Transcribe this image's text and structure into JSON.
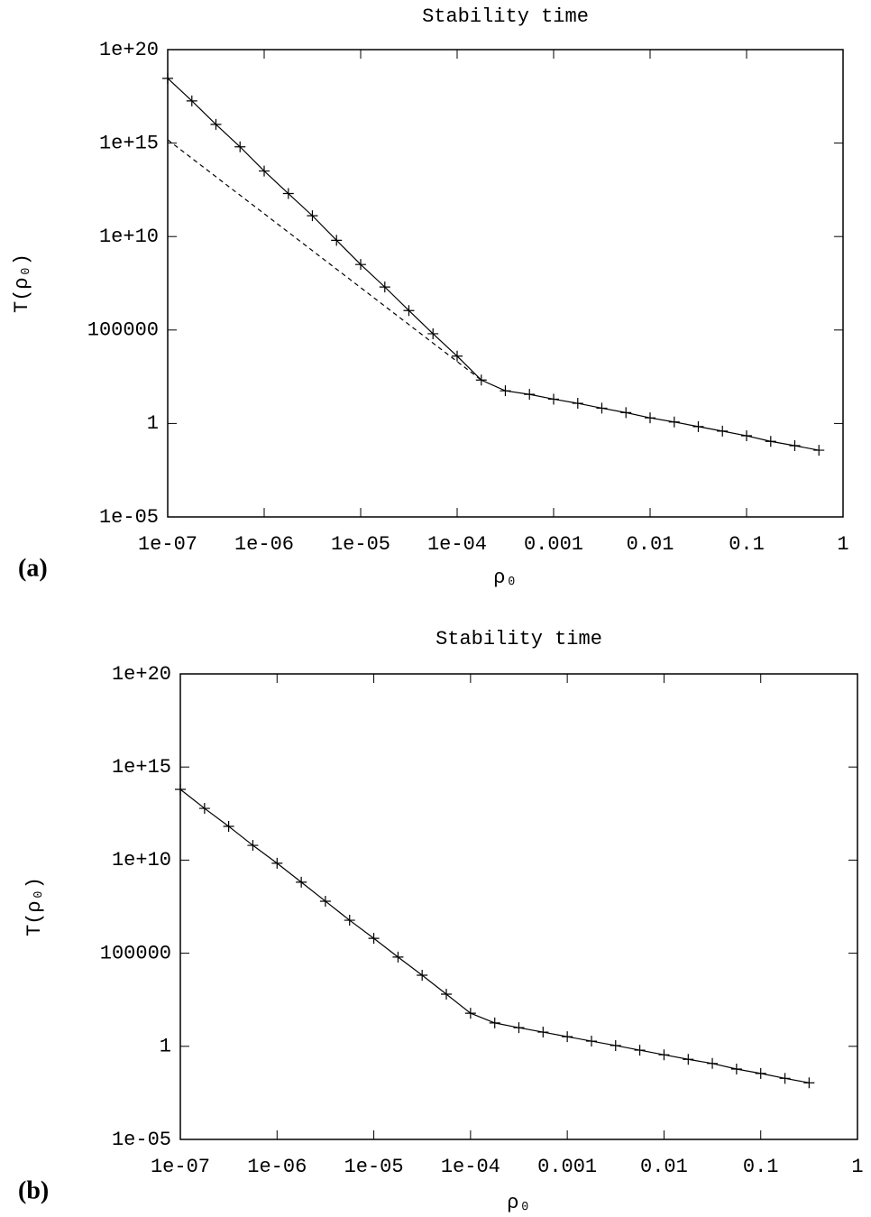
{
  "chart_data": [
    {
      "type": "line",
      "title": "Stability time",
      "panel_label": "(a)",
      "xlabel": "ρ₀",
      "ylabel": "T(ρ₀)",
      "xscale": "log",
      "yscale": "log",
      "xlim": [
        1e-07,
        1
      ],
      "ylim": [
        1e-05,
        1e+20
      ],
      "xticks": [
        {
          "value": 1e-07,
          "label": "1e-07"
        },
        {
          "value": 1e-06,
          "label": "1e-06"
        },
        {
          "value": 1e-05,
          "label": "1e-05"
        },
        {
          "value": 0.0001,
          "label": "1e-04"
        },
        0.001,
        0.01,
        0.1,
        1
      ],
      "yticks": [
        {
          "value": 1e-05,
          "label": "1e-05"
        },
        1,
        100000,
        {
          "value": 10000000000.0,
          "label": "1e+10"
        },
        {
          "value": 1000000000000000.0,
          "label": "1e+15"
        },
        {
          "value": 1e+20,
          "label": "1e+20"
        }
      ],
      "series": [
        {
          "color": "#000000",
          "dash": false,
          "marker": "+",
          "x": [
            1e-07,
            1.78e-07,
            3.16e-07,
            5.62e-07,
            1e-06,
            1.78e-06,
            3.16e-06,
            5.62e-06,
            1e-05,
            1.78e-05,
            3.16e-05,
            5.62e-05,
            0.0001,
            0.000178,
            0.000316,
            0.000562,
            0.001,
            0.00178,
            0.00316,
            0.00562,
            0.01,
            0.0178,
            0.0316,
            0.0562,
            0.1,
            0.178,
            0.316,
            0.562
          ],
          "values": [
            2.9e+18,
            1.8e+17,
            1e+16,
            630000000000000.0,
            32000000000000.0,
            2000000000000.0,
            130000000000.0,
            6300000000.0,
            320000000.0,
            20000000.0,
            1100000.0,
            63000.0,
            4000,
            210,
            56,
            36,
            20,
            12,
            6.6,
            3.8,
            2,
            1.2,
            0.68,
            0.39,
            0.22,
            0.11,
            0.065,
            0.037
          ]
        },
        {
          "color": "#000000",
          "dash": true,
          "marker": "none",
          "x": [
            1e-07,
            0.000178
          ],
          "values": [
            1500000000000000.0,
            210
          ]
        }
      ]
    },
    {
      "type": "line",
      "title": "Stability time",
      "panel_label": "(b)",
      "xlabel": "ρ₀",
      "ylabel": "T(ρ₀)",
      "xscale": "log",
      "yscale": "log",
      "xlim": [
        1e-07,
        1
      ],
      "ylim": [
        1e-05,
        1e+20
      ],
      "xticks": [
        {
          "value": 1e-07,
          "label": "1e-07"
        },
        {
          "value": 1e-06,
          "label": "1e-06"
        },
        {
          "value": 1e-05,
          "label": "1e-05"
        },
        {
          "value": 0.0001,
          "label": "1e-04"
        },
        0.001,
        0.01,
        0.1,
        1
      ],
      "yticks": [
        {
          "value": 1e-05,
          "label": "1e-05"
        },
        1,
        100000,
        {
          "value": 10000000000.0,
          "label": "1e+10"
        },
        {
          "value": 1000000000000000.0,
          "label": "1e+15"
        },
        {
          "value": 1e+20,
          "label": "1e+20"
        }
      ],
      "series": [
        {
          "color": "#000000",
          "dash": false,
          "marker": "+",
          "x": [
            1e-07,
            1.78e-07,
            3.16e-07,
            5.62e-07,
            1e-06,
            1.78e-06,
            3.16e-06,
            5.62e-06,
            1e-05,
            1.78e-05,
            3.16e-05,
            5.62e-05,
            0.0001,
            0.000178,
            0.000316,
            0.000562,
            0.001,
            0.00178,
            0.00316,
            0.00562,
            0.01,
            0.0178,
            0.0316,
            0.0562,
            0.1,
            0.178,
            0.316
          ],
          "values": [
            63000000000000.0,
            6000000000000.0,
            650000000000.0,
            62000000000.0,
            6800000000.0,
            650000000.0,
            62000000.0,
            5900000.0,
            630000.0,
            62000.0,
            6600,
            630,
            60,
            18,
            10,
            5.8,
            3.3,
            1.9,
            1.1,
            0.62,
            0.35,
            0.2,
            0.12,
            0.06,
            0.035,
            0.019,
            0.011
          ]
        }
      ]
    }
  ]
}
